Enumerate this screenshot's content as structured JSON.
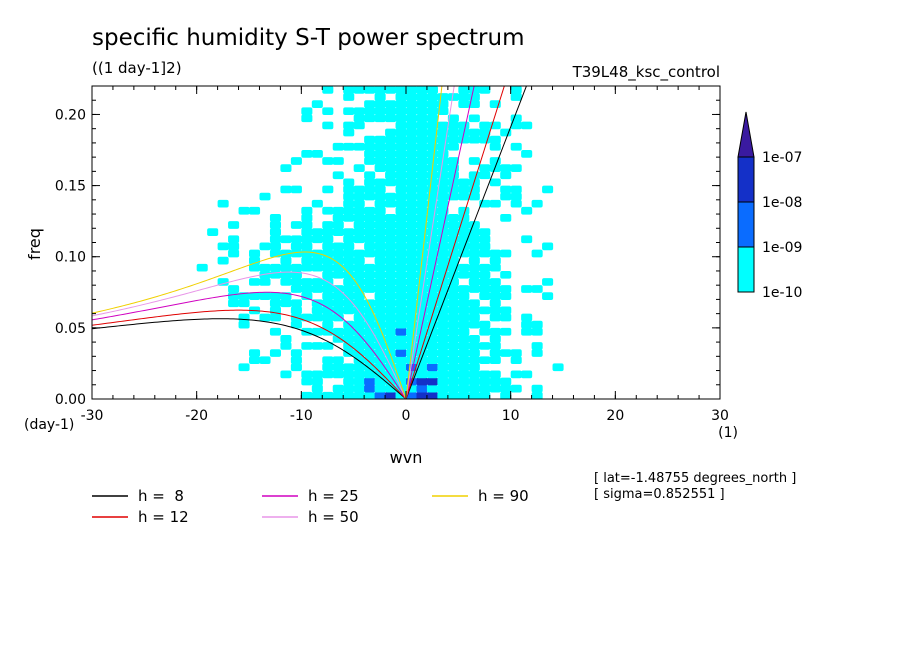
{
  "chart_data": {
    "type": "heatmap",
    "title": "specific humidity S-T power spectrum",
    "subtitle": "((1 day-1]2)",
    "run_label": "T39L48_ksc_control",
    "xlabel": "wvn",
    "ylabel": "freq",
    "x_unit_label": "(1)",
    "y_unit_label": "(day-1)",
    "xlim": [
      -30,
      30
    ],
    "ylim": [
      0.0,
      0.22
    ],
    "x_ticks": [
      "-30",
      "-20",
      "-10",
      "0",
      "10",
      "20",
      "30"
    ],
    "y_ticks": [
      "0.00",
      "0.05",
      "0.10",
      "0.15",
      "0.20"
    ],
    "colorbar": {
      "levels": [
        "1e-10",
        "1e-09",
        "1e-08",
        "1e-07"
      ],
      "colors": [
        "#00ffff",
        "#0a6cff",
        "#1430c8",
        "#3a1aa0"
      ]
    },
    "dispersion_curves": [
      {
        "name": "h =  8",
        "h": 8,
        "color": "#000000"
      },
      {
        "name": "h = 12",
        "h": 12,
        "color": "#e00000"
      },
      {
        "name": "h = 25",
        "h": 25,
        "color": "#d000c0"
      },
      {
        "name": "h = 50",
        "h": 50,
        "color": "#e896e8"
      },
      {
        "name": "h = 90",
        "h": 90,
        "color": "#f0d000"
      }
    ],
    "annotations": [
      "[ lat=-1.48755 degrees_north ]",
      "[ sigma=0.852551 ]"
    ]
  },
  "colors": {
    "axis": "#000000",
    "background": "#ffffff"
  }
}
